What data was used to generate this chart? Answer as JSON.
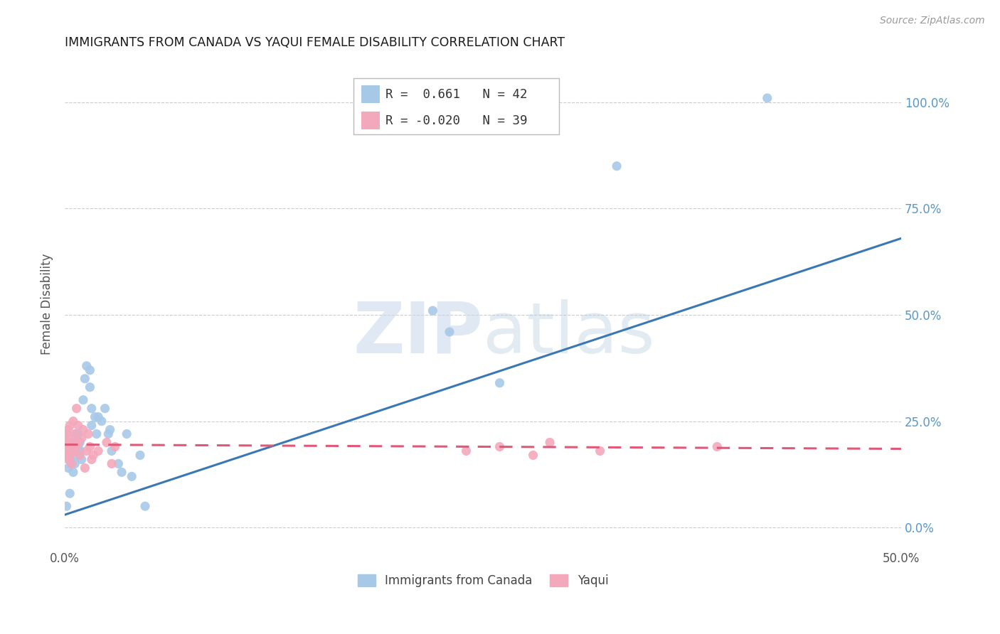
{
  "title": "IMMIGRANTS FROM CANADA VS YAQUI FEMALE DISABILITY CORRELATION CHART",
  "source": "Source: ZipAtlas.com",
  "ylabel": "Female Disability",
  "ytick_labels": [
    "0.0%",
    "25.0%",
    "50.0%",
    "75.0%",
    "100.0%"
  ],
  "ytick_values": [
    0.0,
    0.25,
    0.5,
    0.75,
    1.0
  ],
  "xlim": [
    0.0,
    0.5
  ],
  "ylim": [
    -0.05,
    1.1
  ],
  "blue_color": "#a8c8e8",
  "pink_color": "#f4a8bc",
  "blue_line_color": "#3a78b5",
  "pink_line_color": "#e05878",
  "legend_R_blue": "R =  0.661",
  "legend_N_blue": "N = 42",
  "legend_R_pink": "R = -0.020",
  "legend_N_pink": "N = 39",
  "watermark_zip": "ZIP",
  "watermark_atlas": "atlas",
  "blue_scatter_x": [
    0.001,
    0.002,
    0.003,
    0.003,
    0.004,
    0.005,
    0.005,
    0.006,
    0.006,
    0.007,
    0.007,
    0.008,
    0.008,
    0.009,
    0.009,
    0.01,
    0.011,
    0.012,
    0.013,
    0.015,
    0.015,
    0.016,
    0.016,
    0.018,
    0.019,
    0.02,
    0.022,
    0.024,
    0.026,
    0.027,
    0.028,
    0.032,
    0.034,
    0.037,
    0.04,
    0.045,
    0.048,
    0.22,
    0.23,
    0.26,
    0.33,
    0.42
  ],
  "blue_scatter_y": [
    0.05,
    0.14,
    0.08,
    0.16,
    0.2,
    0.13,
    0.18,
    0.2,
    0.15,
    0.22,
    0.17,
    0.19,
    0.22,
    0.2,
    0.18,
    0.16,
    0.3,
    0.35,
    0.38,
    0.33,
    0.37,
    0.24,
    0.28,
    0.26,
    0.22,
    0.26,
    0.25,
    0.28,
    0.22,
    0.23,
    0.18,
    0.15,
    0.13,
    0.22,
    0.12,
    0.17,
    0.05,
    0.51,
    0.46,
    0.34,
    0.85,
    1.01
  ],
  "pink_scatter_x": [
    0.001,
    0.001,
    0.001,
    0.001,
    0.002,
    0.002,
    0.002,
    0.002,
    0.003,
    0.003,
    0.003,
    0.004,
    0.004,
    0.005,
    0.005,
    0.006,
    0.007,
    0.007,
    0.008,
    0.008,
    0.009,
    0.01,
    0.011,
    0.012,
    0.013,
    0.014,
    0.015,
    0.016,
    0.017,
    0.02,
    0.025,
    0.028,
    0.03,
    0.24,
    0.26,
    0.28,
    0.29,
    0.32,
    0.39
  ],
  "pink_scatter_y": [
    0.18,
    0.2,
    0.17,
    0.22,
    0.19,
    0.23,
    0.16,
    0.21,
    0.18,
    0.24,
    0.17,
    0.2,
    0.15,
    0.25,
    0.18,
    0.22,
    0.28,
    0.19,
    0.2,
    0.24,
    0.17,
    0.21,
    0.23,
    0.14,
    0.18,
    0.22,
    0.19,
    0.16,
    0.17,
    0.18,
    0.2,
    0.15,
    0.19,
    0.18,
    0.19,
    0.17,
    0.2,
    0.18,
    0.19
  ],
  "blue_trendline_x": [
    0.0,
    0.5
  ],
  "blue_trendline_y": [
    0.03,
    0.68
  ],
  "pink_trendline_x": [
    0.0,
    0.5
  ],
  "pink_trendline_y": [
    0.195,
    0.185
  ],
  "xtick_positions": [
    0.0,
    0.1,
    0.2,
    0.3,
    0.4,
    0.5
  ],
  "xtick_labels": [
    "0.0%",
    "",
    "",
    "",
    "",
    "50.0%"
  ],
  "background_color": "#ffffff",
  "grid_color": "#cccccc",
  "title_color": "#1a1a1a",
  "right_axis_color": "#5599cc"
}
